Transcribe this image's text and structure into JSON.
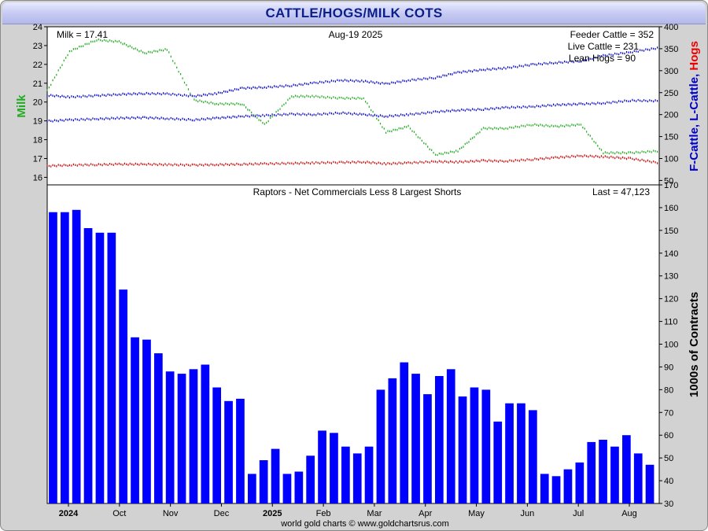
{
  "title": "CATTLE/HOGS/MILK COTS",
  "chart_data": [
    {
      "type": "line",
      "title": "",
      "date": "Aug-19  2025",
      "left_axis": {
        "label": "Milk",
        "color": "#22aa22",
        "ticks": [
          16,
          17,
          18,
          19,
          20,
          21,
          22,
          23,
          24
        ],
        "ylim": [
          15.6,
          24
        ]
      },
      "right_axis": {
        "label_parts": [
          {
            "text": "F-Cattle,",
            "color": "#0000cc"
          },
          {
            "text": " L-Cattle,",
            "color": "#0000cc"
          },
          {
            "text": " Hogs",
            "color": "#ee0000"
          }
        ],
        "ticks": [
          50,
          100,
          150,
          200,
          250,
          300,
          350,
          400
        ],
        "ylim": [
          40,
          400
        ]
      },
      "legend": [
        {
          "label": "Milk = 17.41"
        },
        {
          "label": "Feeder Cattle = 352"
        },
        {
          "label": "Live Cattle = 231"
        },
        {
          "label": "Lean Hogs = 90"
        }
      ],
      "x": [
        "2024-08-01",
        "2024-08-15",
        "2024-09-01",
        "2024-09-15",
        "2024-10-01",
        "2024-10-15",
        "2024-11-01",
        "2024-11-15",
        "2024-12-01",
        "2024-12-15",
        "2025-01-01",
        "2025-01-15",
        "2025-02-01",
        "2025-02-15",
        "2025-03-01",
        "2025-03-15",
        "2025-04-01",
        "2025-04-15",
        "2025-05-01",
        "2025-05-15",
        "2025-06-01",
        "2025-06-15",
        "2025-07-01",
        "2025-07-15",
        "2025-08-01",
        "2025-08-19"
      ],
      "series": [
        {
          "name": "Milk",
          "color": "#22aa22",
          "axis": "left",
          "values": [
            20.6,
            22.7,
            23.3,
            23.2,
            22.6,
            22.8,
            20.1,
            19.9,
            19.9,
            18.8,
            20.3,
            20.3,
            20.2,
            20.2,
            18.4,
            18.7,
            17.2,
            17.4,
            18.6,
            18.6,
            18.8,
            18.7,
            18.8,
            17.3,
            17.3,
            17.4
          ]
        },
        {
          "name": "Feeder Cattle",
          "color": "#0000cc",
          "axis": "right",
          "values": [
            244,
            240,
            243,
            246,
            248,
            247,
            242,
            248,
            260,
            262,
            266,
            272,
            278,
            276,
            270,
            278,
            284,
            296,
            302,
            306,
            314,
            318,
            322,
            334,
            342,
            352
          ]
        },
        {
          "name": "Live Cattle",
          "color": "#0000cc",
          "axis": "right",
          "values": [
            185,
            188,
            190,
            192,
            193,
            191,
            188,
            192,
            196,
            198,
            201,
            200,
            204,
            200,
            196,
            200,
            206,
            210,
            212,
            216,
            218,
            222,
            224,
            226,
            232,
            231
          ]
        },
        {
          "name": "Lean Hogs",
          "color": "#cc0000",
          "axis": "right",
          "values": [
            83,
            85,
            86,
            87,
            87,
            86,
            85,
            86,
            87,
            88,
            89,
            90,
            91,
            92,
            88,
            90,
            93,
            92,
            95,
            94,
            98,
            102,
            106,
            104,
            100,
            90
          ]
        }
      ]
    },
    {
      "type": "bar",
      "title": "Raptors - Net Commercials Less 8 Largest Shorts",
      "last_label": "Last = 47,123",
      "ylabel": "1000s of Contracts",
      "color": "#0000ff",
      "ylim": [
        30,
        170
      ],
      "yticks": [
        30,
        40,
        50,
        60,
        70,
        80,
        90,
        100,
        110,
        120,
        130,
        140,
        150,
        160,
        170
      ],
      "x_labels": [
        "2024",
        "Oct",
        "Nov",
        "Dec",
        "2025",
        "Feb",
        "Mar",
        "Apr",
        "May",
        "Jun",
        "Jul",
        "Aug"
      ],
      "values": [
        158,
        158,
        159,
        151,
        149,
        149,
        124,
        103,
        102,
        96,
        88,
        87,
        89,
        91,
        81,
        75,
        76,
        43,
        49,
        54,
        43,
        44,
        51,
        62,
        61,
        55,
        52,
        55,
        80,
        85,
        92,
        87,
        78,
        86,
        89,
        77,
        81,
        80,
        66,
        74,
        74,
        71,
        43,
        42,
        45,
        48,
        57,
        58,
        55,
        60,
        52,
        47
      ]
    }
  ],
  "footer": "world gold charts © www.goldchartsrus.com"
}
